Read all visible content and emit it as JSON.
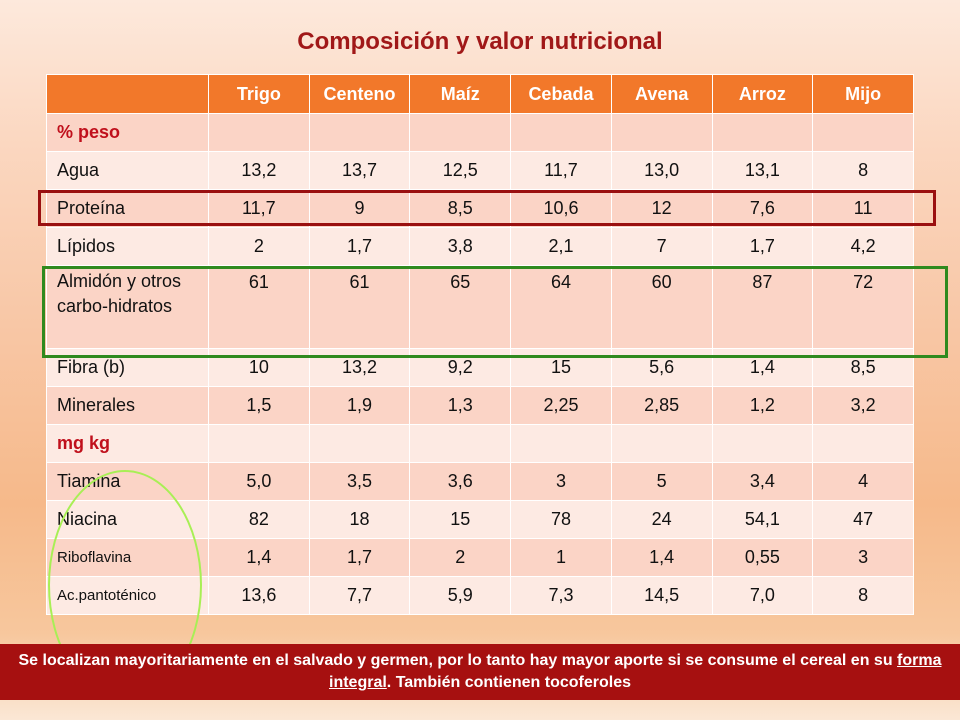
{
  "title": "Composición y valor nutricional",
  "table": {
    "columns": [
      "Trigo",
      "Centeno",
      "Maíz",
      "Cebada",
      "Avena",
      "Arroz",
      "Mijo"
    ],
    "rows": [
      {
        "label": "% peso",
        "values": [
          "",
          "",
          "",
          "",
          "",
          "",
          ""
        ],
        "section": true
      },
      {
        "label": "Agua",
        "values": [
          "13,2",
          "13,7",
          "12,5",
          "11,7",
          "13,0",
          "13,1",
          "8"
        ]
      },
      {
        "label": "Proteína",
        "values": [
          "11,7",
          "9",
          "8,5",
          "10,6",
          "12",
          "7,6",
          "11"
        ]
      },
      {
        "label": "Lípidos",
        "values": [
          "2",
          "1,7",
          "3,8",
          "2,1",
          "7",
          "1,7",
          "4,2"
        ]
      },
      {
        "label": "Almidón y otros carbo-hidratos",
        "values": [
          "61",
          "61",
          "65",
          "64",
          "60",
          "87",
          "72"
        ]
      },
      {
        "label": "Fibra (b)",
        "values": [
          "10",
          "13,2",
          "9,2",
          "15",
          "5,6",
          "1,4",
          "8,5"
        ]
      },
      {
        "label": "Minerales",
        "values": [
          "1,5",
          "1,9",
          "1,3",
          "2,25",
          "2,85",
          "1,2",
          "3,2"
        ]
      },
      {
        "label": "mg kg",
        "values": [
          "",
          "",
          "",
          "",
          "",
          "",
          ""
        ],
        "section": true
      },
      {
        "label": "Tiamina",
        "values": [
          "5,0",
          "3,5",
          "3,6",
          "3",
          "5",
          "3,4",
          "4"
        ]
      },
      {
        "label": "Niacina",
        "values": [
          "82",
          "18",
          "15",
          "78",
          "24",
          "54,1",
          "47"
        ]
      },
      {
        "label": "Riboflavina",
        "values": [
          "1,4",
          "1,7",
          "2",
          "1",
          "1,4",
          "0,55",
          "3"
        ]
      },
      {
        "label": "Ac.pantoténico",
        "values": [
          "13,6",
          "7,7",
          "5,9",
          "7,3",
          "14,5",
          "7,0",
          "8"
        ]
      }
    ]
  },
  "footer": {
    "part1": "Se localizan mayoritariamente en el salvado y germen, por lo tanto hay mayor aporte si se consume el cereal en su ",
    "link": "forma integral",
    "part2": ". También contienen tocoferoles"
  },
  "colors": {
    "header_bg": "#f2782a",
    "title": "#a01818",
    "footer_bg": "#a61010",
    "box_red": "#9a1010",
    "box_green": "#2f8a1e",
    "circle": "#a8ef55"
  }
}
